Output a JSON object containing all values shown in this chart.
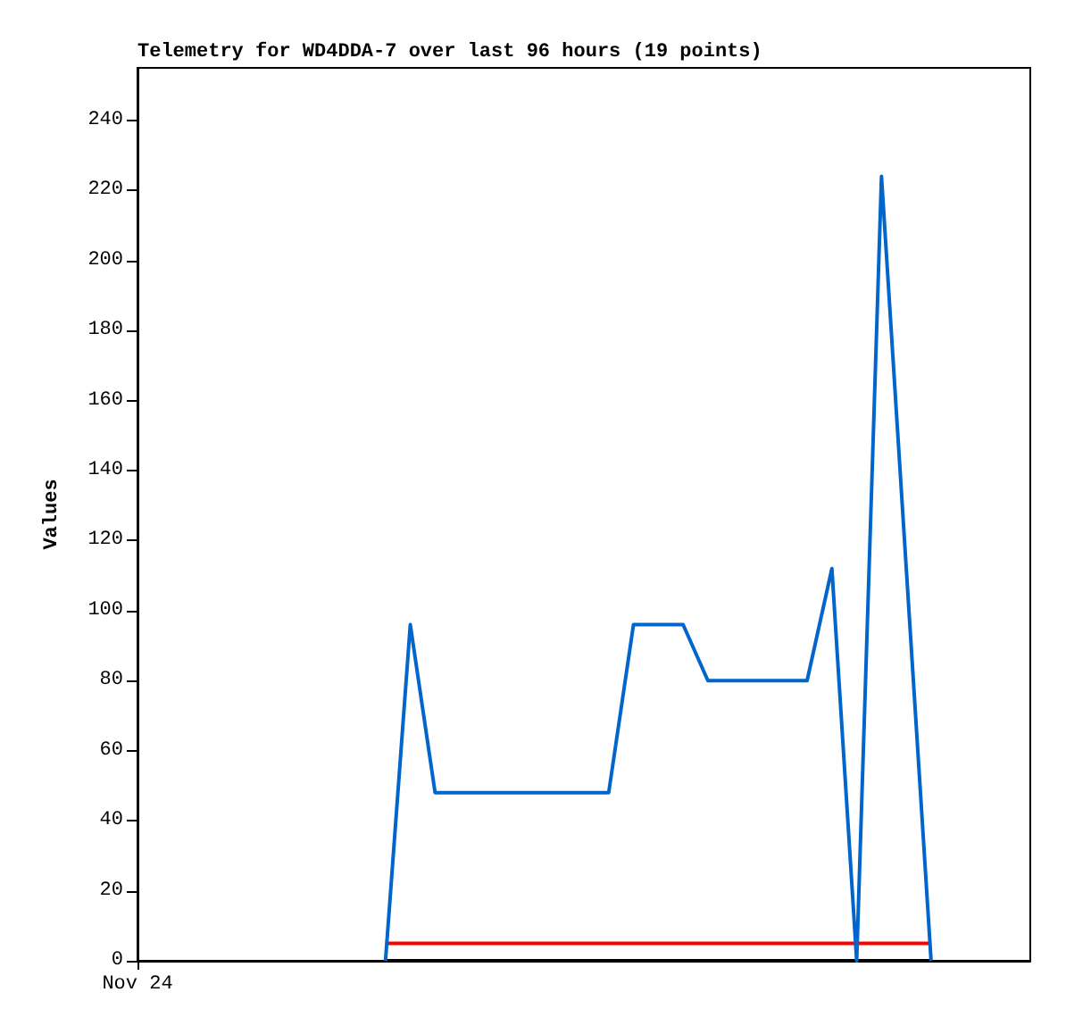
{
  "chart_data": {
    "type": "line",
    "title": "Telemetry for WD4DDA-7 over last 96 hours (19 points)",
    "ylabel": "Values",
    "categories": [
      "Nov 24",
      null,
      null,
      null,
      null,
      null,
      null,
      null,
      null,
      null,
      null,
      null,
      null,
      null,
      null,
      null,
      null,
      null,
      null,
      null,
      null,
      null,
      null,
      null,
      null,
      null,
      null,
      null,
      null,
      null,
      null,
      null,
      null,
      null,
      null,
      null,
      null
    ],
    "ylim": [
      0,
      255
    ],
    "yticks": [
      0,
      20,
      40,
      60,
      80,
      100,
      120,
      140,
      160,
      180,
      200,
      220,
      240
    ],
    "marker": "none",
    "line_style": "solid",
    "series": [
      {
        "color": "#0066cc",
        "values": [
          null,
          null,
          null,
          null,
          null,
          null,
          null,
          null,
          null,
          null,
          0,
          96,
          48,
          48,
          48,
          48,
          48,
          48,
          48,
          48,
          96,
          96,
          96,
          80,
          80,
          80,
          80,
          80,
          112,
          0,
          224,
          112,
          0,
          null,
          null,
          null,
          null
        ]
      },
      {
        "color": "#ff0000",
        "values": [
          null,
          null,
          null,
          null,
          null,
          null,
          null,
          null,
          null,
          null,
          5,
          5,
          5,
          5,
          5,
          5,
          5,
          5,
          5,
          5,
          5,
          5,
          5,
          5,
          5,
          5,
          5,
          5,
          5,
          5,
          5,
          5,
          5,
          null,
          null,
          null,
          null
        ]
      },
      {
        "color": "#000000",
        "values": [
          null,
          null,
          null,
          null,
          null,
          null,
          null,
          null,
          null,
          null,
          0,
          0,
          0,
          0,
          0,
          0,
          0,
          0,
          0,
          0,
          0,
          0,
          0,
          0,
          0,
          0,
          0,
          0,
          0,
          0,
          0,
          0,
          0,
          null,
          null,
          null,
          null
        ]
      }
    ]
  }
}
